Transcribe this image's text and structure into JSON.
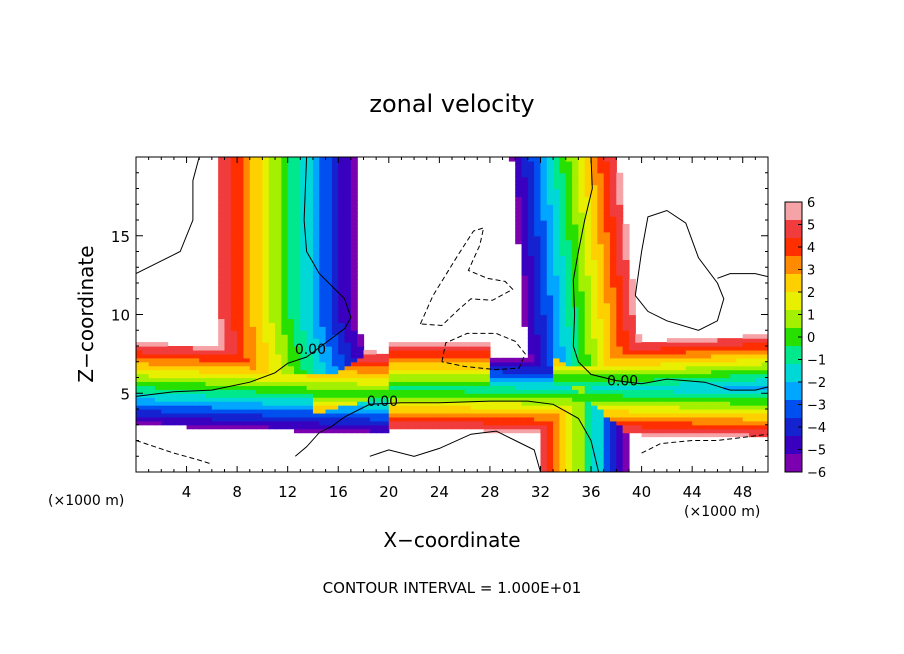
{
  "chart_data": {
    "type": "heatmap",
    "title": "zonal velocity",
    "xlabel": "X−coordinate",
    "ylabel": "Z−coordinate",
    "x_unit_left": "(×1000 m)",
    "x_unit_right": "(×1000 m)",
    "footer": "CONTOUR INTERVAL = 1.000E+01",
    "xlim": [
      0,
      50
    ],
    "ylim": [
      0,
      20
    ],
    "x_ticks": [
      4,
      8,
      12,
      16,
      20,
      24,
      28,
      32,
      36,
      40,
      44,
      48
    ],
    "x_tick_labels": [
      "4",
      "8",
      "12",
      "16",
      "20",
      "24",
      "28",
      "32",
      "36",
      "40",
      "44",
      "48"
    ],
    "y_ticks": [
      5,
      10,
      15
    ],
    "y_tick_labels": [
      "5",
      "10",
      "15"
    ],
    "contour_labels": [
      {
        "text": "0.00",
        "x": 13.8,
        "y": 7.5
      },
      {
        "text": "0.00",
        "x": 19.5,
        "y": 4.2
      },
      {
        "text": "0.00",
        "x": 38.5,
        "y": 5.5
      }
    ],
    "colorbar": {
      "min": -6,
      "max": 6,
      "tick_values": [
        6,
        5,
        4,
        3,
        2,
        1,
        0,
        -1,
        -2,
        -3,
        -4,
        -5,
        -6
      ],
      "tick_labels": [
        "6",
        "5",
        "4",
        "3",
        "2",
        "1",
        "0",
        "−1",
        "−2",
        "−3",
        "−4",
        "−5",
        "−6"
      ],
      "colors": [
        "#f6a3a8",
        "#f03c3c",
        "#ff2f00",
        "#ff8a00",
        "#ffd000",
        "#e8ef00",
        "#a3f000",
        "#28e000",
        "#00e88c",
        "#00d8d8",
        "#00a6ff",
        "#0050f0",
        "#1422d0",
        "#3a00c0",
        "#7a00b0"
      ]
    }
  }
}
